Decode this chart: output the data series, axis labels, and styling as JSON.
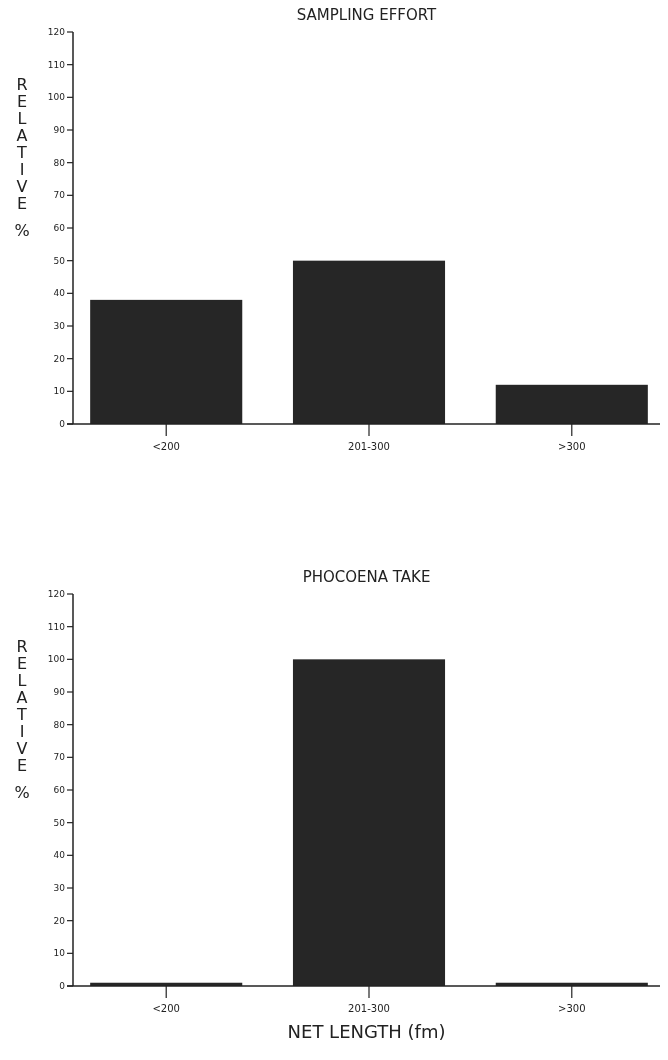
{
  "chart_data": [
    {
      "type": "bar",
      "title": "SAMPLING EFFORT",
      "ylabel": "RELATIVE %",
      "categories": [
        "<200",
        "201-300",
        ">300"
      ],
      "values": [
        38,
        50,
        12
      ],
      "color": "#262626",
      "ylim": [
        0,
        120
      ],
      "yticks": [
        0,
        10,
        20,
        30,
        40,
        50,
        60,
        70,
        80,
        90,
        100,
        110,
        120
      ]
    },
    {
      "type": "bar",
      "title": "PHOCOENA TAKE",
      "ylabel": "RELATIVE %",
      "xlabel": "NET LENGTH (fm)",
      "categories": [
        "<200",
        "201-300",
        ">300"
      ],
      "values": [
        1,
        100,
        1
      ],
      "color": "#262626",
      "ylim": [
        0,
        120
      ],
      "yticks": [
        0,
        10,
        20,
        30,
        40,
        50,
        60,
        70,
        80,
        90,
        100,
        110,
        120
      ]
    }
  ]
}
